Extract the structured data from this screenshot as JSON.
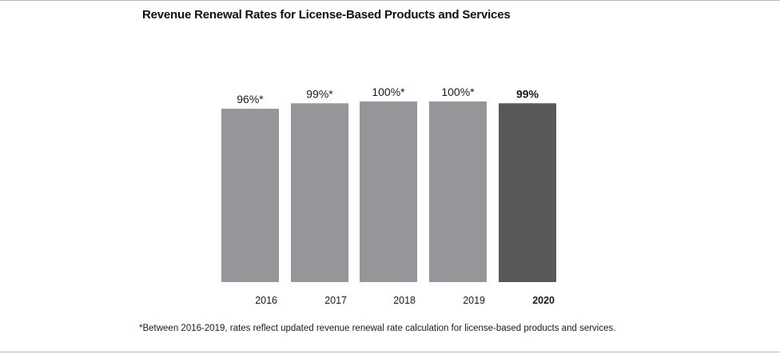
{
  "chart_data": {
    "type": "bar",
    "title": "Revenue Renewal Rates for License-Based Products and Services",
    "categories": [
      "2016",
      "2017",
      "2018",
      "2019",
      "2020"
    ],
    "values": [
      96,
      99,
      100,
      100,
      99
    ],
    "data_labels": [
      "96%*",
      "99%*",
      "100%*",
      "100%*",
      "99%"
    ],
    "highlight_index": 4,
    "colors": {
      "bar": "#959699",
      "highlight_bar": "#58585a"
    },
    "xlabel": "",
    "ylabel": "",
    "grid": false,
    "footnote": "*Between 2016-2019, rates reflect updated revenue renewal rate calculation for license-based products and services."
  }
}
